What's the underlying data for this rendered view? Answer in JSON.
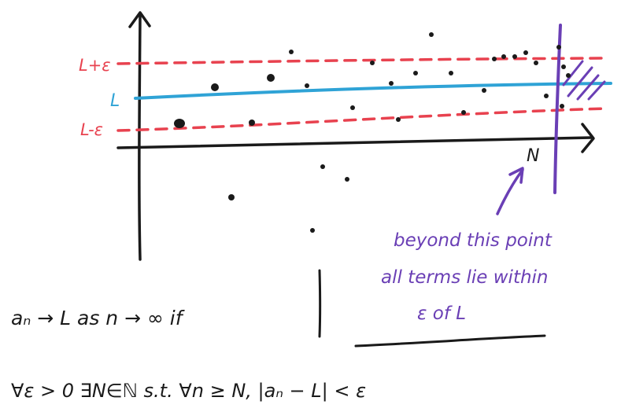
{
  "labels": {
    "upper": "L+ε",
    "middle": "L",
    "lower": "L-ε",
    "n_marker": "N"
  },
  "annotation": {
    "line1": "beyond this point",
    "line2": "all terms lie within",
    "line3": "ε of L"
  },
  "definition": {
    "line1": "aₙ → L as n → ∞ if",
    "line2": "∀ε > 0  ∃N∈ℕ s.t. ∀n ≥ N, |aₙ − L| < ε"
  },
  "colors": {
    "ink": "#1a1a1a",
    "band": "#e8424f",
    "limit": "#2fa3d6",
    "cutoff": "#6a3fb5",
    "label_red": "#e8424f",
    "label_blue": "#2fa3d6"
  }
}
